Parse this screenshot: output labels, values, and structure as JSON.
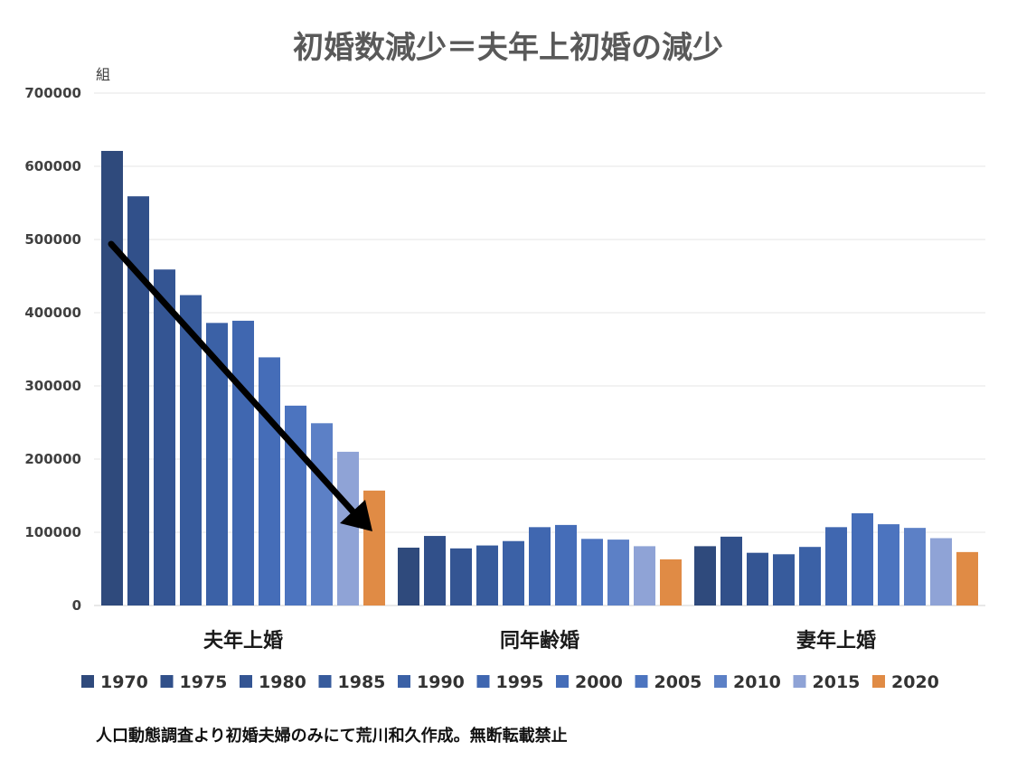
{
  "chart_data": {
    "type": "bar",
    "title": "初婚数減少＝夫年上初婚の減少",
    "yunit": "組",
    "ylim": [
      0,
      700000
    ],
    "yticks": [
      "0",
      "100000",
      "200000",
      "300000",
      "400000",
      "500000",
      "600000",
      "700000"
    ],
    "grid": true,
    "legend_position": "bottom",
    "categories": [
      "夫年上婚",
      "同年齢婚",
      "妻年上婚"
    ],
    "series": [
      {
        "name": "1970",
        "color": "#2f4a7c",
        "values": [
          621000,
          79000,
          81000
        ]
      },
      {
        "name": "1975",
        "color": "#31508a",
        "values": [
          559000,
          95000,
          94000
        ]
      },
      {
        "name": "1980",
        "color": "#345593",
        "values": [
          459000,
          78000,
          72000
        ]
      },
      {
        "name": "1985",
        "color": "#375b9c",
        "values": [
          424000,
          82000,
          70000
        ]
      },
      {
        "name": "1990",
        "color": "#3b61a6",
        "values": [
          386000,
          88000,
          80000
        ]
      },
      {
        "name": "1995",
        "color": "#4067b0",
        "values": [
          389000,
          107000,
          107000
        ]
      },
      {
        "name": "2000",
        "color": "#456db8",
        "values": [
          339000,
          110000,
          126000
        ]
      },
      {
        "name": "2005",
        "color": "#4c74bf",
        "values": [
          273000,
          91000,
          111000
        ]
      },
      {
        "name": "2010",
        "color": "#5c80c6",
        "values": [
          249000,
          90000,
          106000
        ]
      },
      {
        "name": "2015",
        "color": "#8fa3d6",
        "values": [
          210000,
          81000,
          92000
        ]
      },
      {
        "name": "2020",
        "color": "#e08b45",
        "values": [
          157000,
          63000,
          73000
        ]
      }
    ]
  },
  "source_note": "人口動態調査より初婚夫婦のみにて荒川和久作成。無断転載禁止"
}
